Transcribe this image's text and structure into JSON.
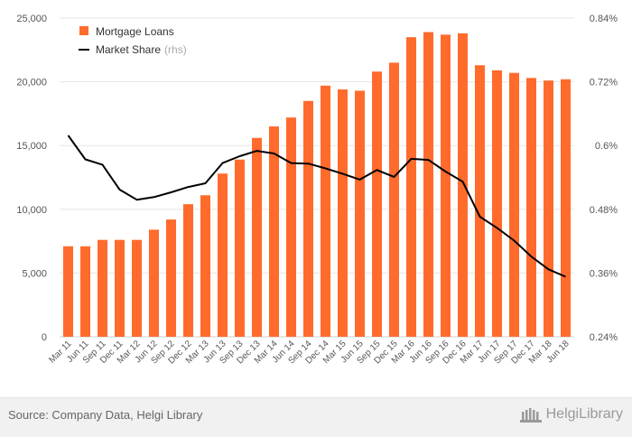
{
  "chart_data": {
    "type": "bar",
    "categories": [
      "Mar 11",
      "Jun 11",
      "Sep 11",
      "Dec 11",
      "Mar 12",
      "Jun 12",
      "Sep 12",
      "Dec 12",
      "Mar 13",
      "Jun 13",
      "Sep 13",
      "Dec 13",
      "Mar 14",
      "Jun 14",
      "Sep 14",
      "Dec 14",
      "Mar 15",
      "Jun 15",
      "Sep 15",
      "Dec 15",
      "Mar 16",
      "Jun 16",
      "Sep 16",
      "Dec 16",
      "Mar 17",
      "Jun 17",
      "Sep 17",
      "Dec 17",
      "Mar 18",
      "Jun 18"
    ],
    "series": [
      {
        "name": "Mortgage Loans",
        "type": "bar",
        "axis": "left",
        "color": "#ff6b2c",
        "values": [
          7100,
          7100,
          7600,
          7600,
          7600,
          8400,
          9200,
          10400,
          11100,
          12800,
          13900,
          15600,
          16500,
          17200,
          18500,
          19700,
          19400,
          19300,
          20800,
          21500,
          23500,
          23900,
          23700,
          23800,
          21300,
          20900,
          20700,
          20300,
          20100,
          20200
        ]
      },
      {
        "name": "Market Share",
        "name_suffix": "(rhs)",
        "type": "line",
        "axis": "right",
        "color": "#000000",
        "values": [
          0.619,
          0.574,
          0.564,
          0.517,
          0.498,
          0.503,
          0.512,
          0.522,
          0.529,
          0.567,
          0.58,
          0.59,
          0.585,
          0.567,
          0.566,
          0.557,
          0.547,
          0.536,
          0.554,
          0.541,
          0.575,
          0.573,
          0.551,
          0.532,
          0.466,
          0.445,
          0.421,
          0.391,
          0.367,
          0.353
        ]
      }
    ],
    "y_left": {
      "min": 0,
      "max": 25000,
      "ticks": [
        "0",
        "5,000",
        "10,000",
        "15,000",
        "20,000",
        "25,000"
      ]
    },
    "y_right": {
      "min": 0.24,
      "max": 0.84,
      "ticks": [
        "0.24%",
        "0.36%",
        "0.48%",
        "0.6%",
        "0.72%",
        "0.84%"
      ]
    },
    "grid": "horizontal",
    "legend_position": "top-left"
  },
  "footer": {
    "source": "Source: Company Data, Helgi Library",
    "logo_text": "HelgiLibrary"
  }
}
